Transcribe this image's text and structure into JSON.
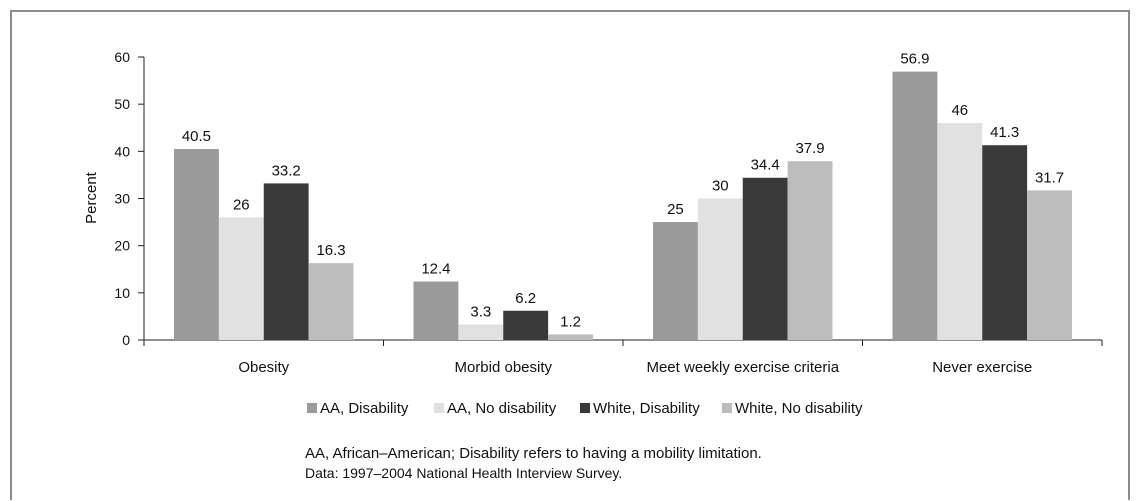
{
  "chart_data": {
    "type": "bar",
    "title": "",
    "xlabel": "",
    "ylabel": "Percent",
    "ylim": [
      0,
      60
    ],
    "yticks": [
      0,
      10,
      20,
      30,
      40,
      50,
      60
    ],
    "categories": [
      "Obesity",
      "Morbid obesity",
      "Meet weekly exercise criteria",
      "Never exercise"
    ],
    "series": [
      {
        "name": "AA, Disability",
        "color": "#9a9a9a",
        "values": [
          40.5,
          12.4,
          25,
          56.9
        ]
      },
      {
        "name": "AA, No disability",
        "color": "#e1e1e1",
        "values": [
          26,
          3.3,
          30,
          46
        ]
      },
      {
        "name": "White, Disability",
        "color": "#3a3a3a",
        "values": [
          33.2,
          6.2,
          34.4,
          41.3
        ]
      },
      {
        "name": "White, No disability",
        "color": "#bdbdbd",
        "values": [
          16.3,
          1.2,
          37.9,
          31.7
        ]
      }
    ],
    "grid": false,
    "legend_position": "bottom"
  },
  "notes": {
    "line1": "AA, African–American; Disability refers to having a mobility limitation.",
    "line2": "Data: 1997–2004 National Health Interview Survey."
  }
}
